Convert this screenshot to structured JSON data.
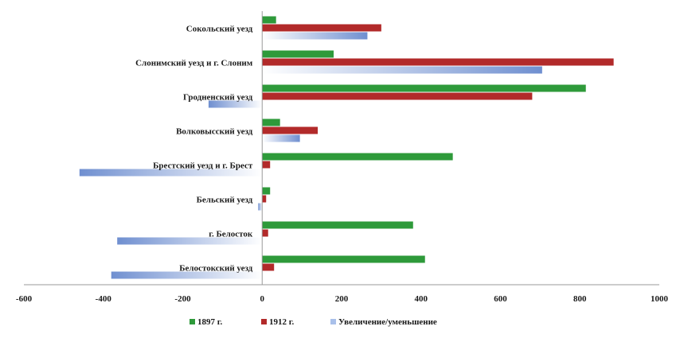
{
  "chart_data": {
    "type": "bar",
    "orientation": "horizontal",
    "categories": [
      "Сокольский уезд",
      "Слонимский уезд и г. Слоним",
      "Гродненский уезд",
      "Волковысский уезд",
      "Брестский уезд и г. Брест",
      "Бельский уезд",
      "г. Белосток",
      "Белостокский уезд"
    ],
    "series": [
      {
        "name": "1897 г.",
        "color": "#2e9a3a",
        "values": [
          35,
          180,
          815,
          45,
          480,
          20,
          380,
          410
        ]
      },
      {
        "name": "1912 г.",
        "color": "#b22a2a",
        "values": [
          300,
          885,
          680,
          140,
          20,
          10,
          15,
          30
        ]
      },
      {
        "name": "Увеличение/уменьшение",
        "color": "#8fa9d8",
        "values": [
          265,
          705,
          -135,
          95,
          -460,
          -10,
          -365,
          -380
        ]
      }
    ],
    "xlim": [
      -600,
      1000
    ],
    "xticks": [
      -600,
      -400,
      -200,
      0,
      200,
      400,
      600,
      800,
      1000
    ],
    "legend_position": "bottom",
    "title": "",
    "xlabel": "",
    "ylabel": ""
  }
}
